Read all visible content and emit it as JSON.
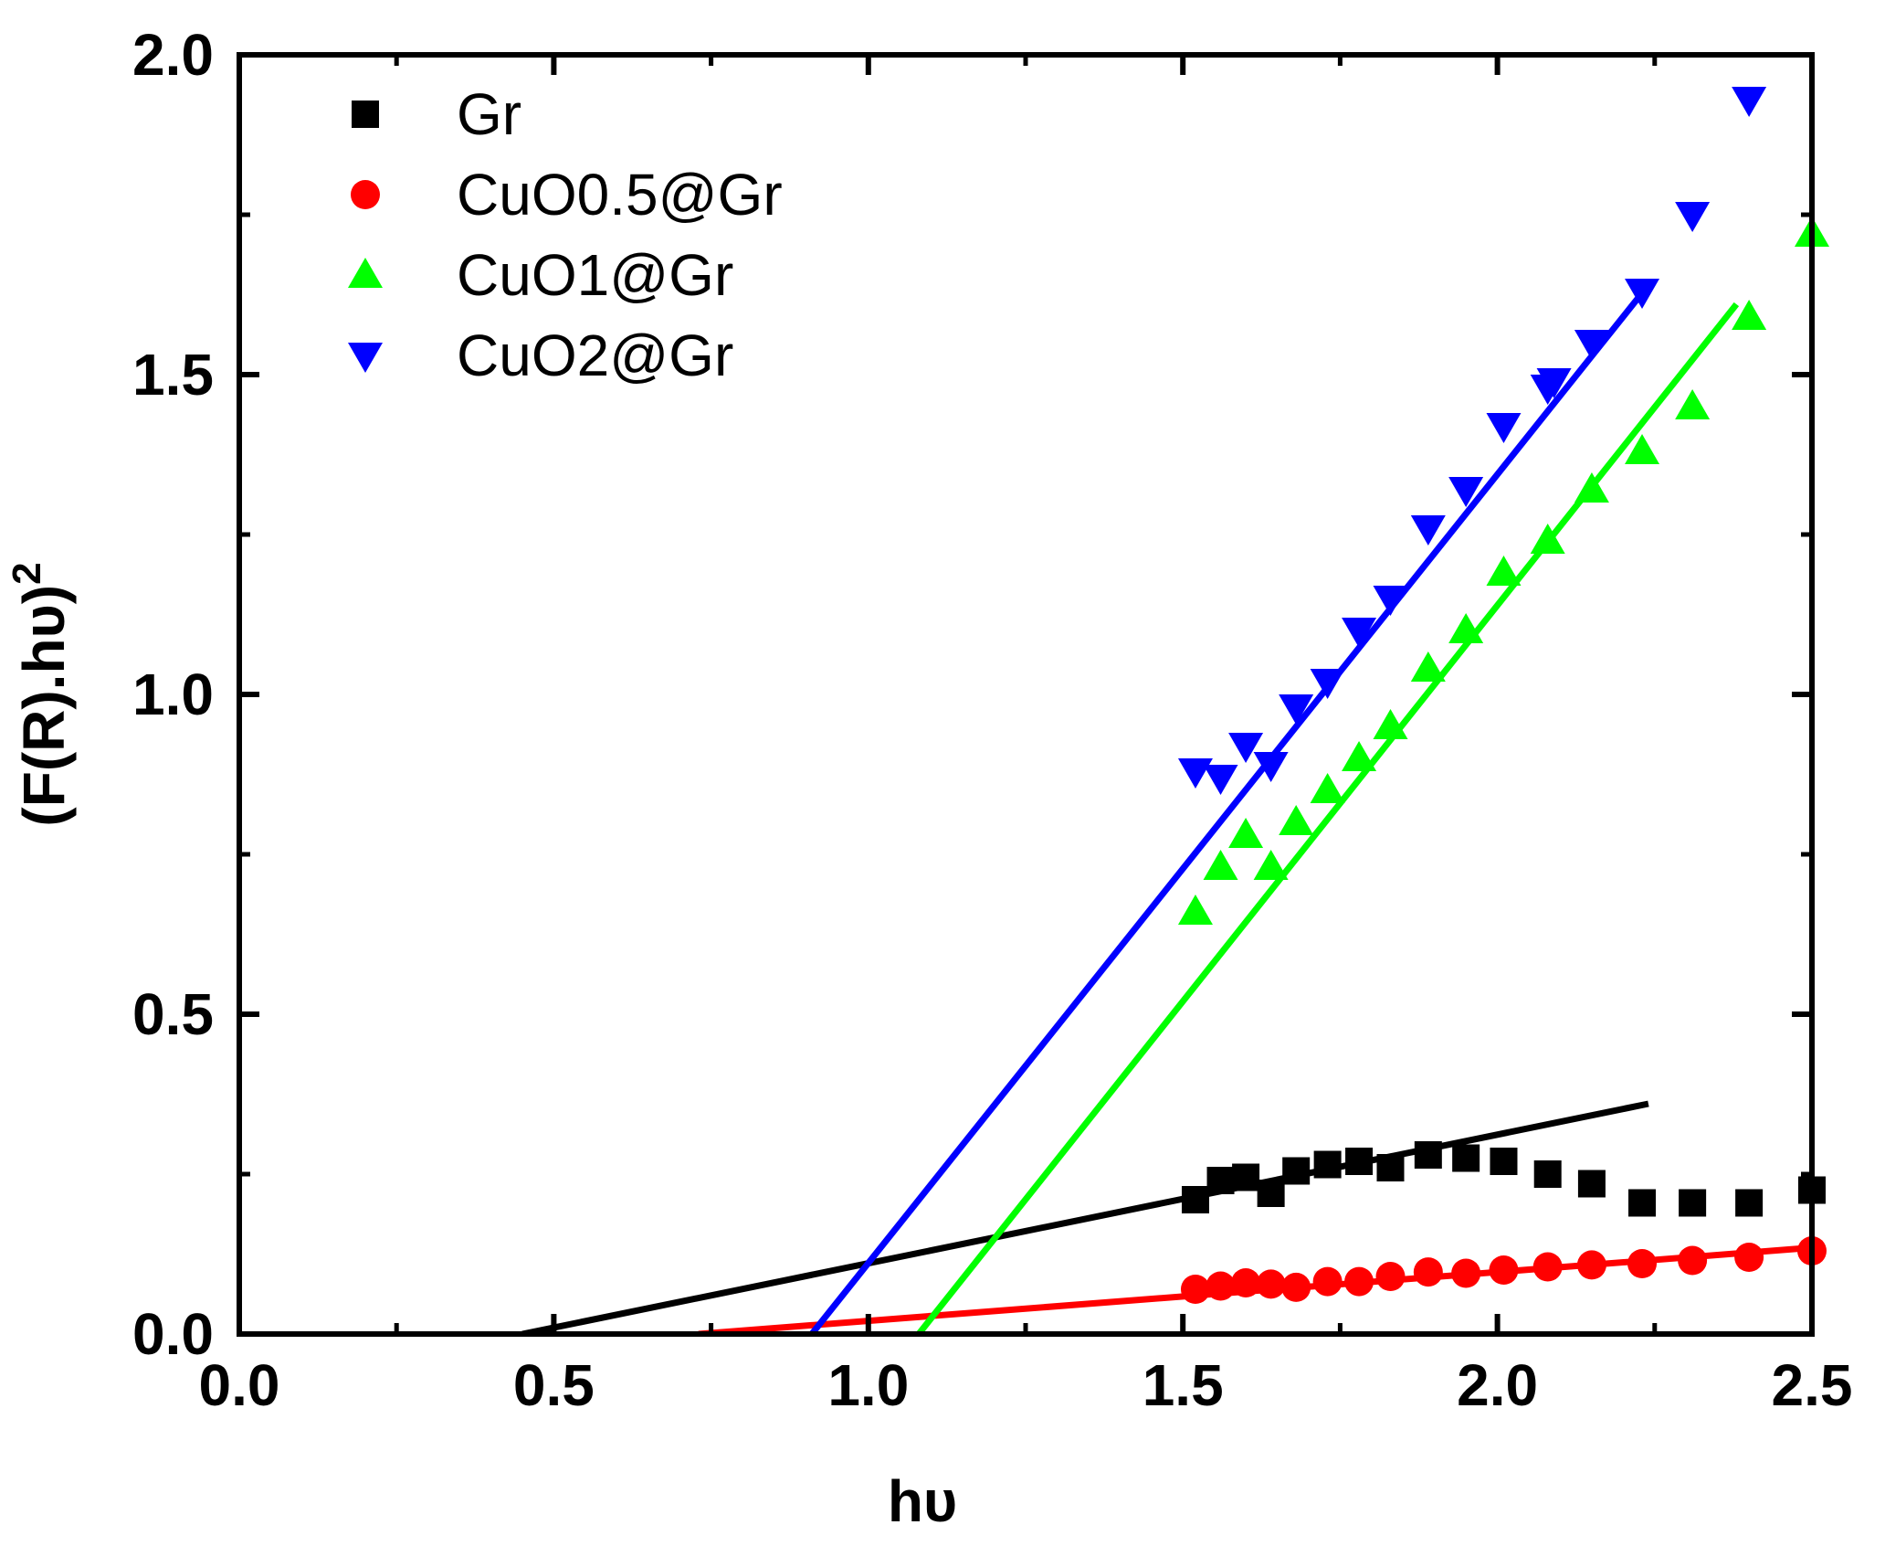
{
  "chart_data": {
    "type": "scatter",
    "title": "",
    "xlabel": "hυ",
    "ylabel": "(F(R).hυ)",
    "ylabel_superscript": "2",
    "xlim": [
      0.0,
      2.5
    ],
    "ylim": [
      0.0,
      2.0
    ],
    "x_ticks": [
      0.0,
      0.5,
      1.0,
      1.5,
      2.0,
      2.5
    ],
    "x_tick_labels": [
      "0.0",
      "0.5",
      "1.0",
      "1.5",
      "2.0",
      "2.5"
    ],
    "y_ticks": [
      0.0,
      0.5,
      1.0,
      1.5,
      2.0
    ],
    "y_tick_labels": [
      "0.0",
      "0.5",
      "1.0",
      "1.5",
      "2.0"
    ],
    "grid": false,
    "legend_position": "top-left",
    "series": [
      {
        "name": "Gr",
        "color": "#000000",
        "marker": "square",
        "x": [
          1.52,
          1.56,
          1.6,
          1.64,
          1.68,
          1.73,
          1.78,
          1.83,
          1.89,
          1.95,
          2.01,
          2.08,
          2.15,
          2.23,
          2.31,
          2.4,
          2.5
        ],
        "y": [
          0.21,
          0.24,
          0.245,
          0.22,
          0.255,
          0.265,
          0.27,
          0.26,
          0.28,
          0.275,
          0.27,
          0.25,
          0.235,
          0.205,
          0.205,
          0.205,
          0.225
        ],
        "fit": [
          [
            0.45,
            0.0
          ],
          [
            2.24,
            0.36
          ]
        ]
      },
      {
        "name": "CuO0.5@Gr",
        "color": "#ff0000",
        "marker": "circle",
        "x": [
          1.52,
          1.56,
          1.6,
          1.64,
          1.68,
          1.73,
          1.78,
          1.83,
          1.89,
          1.95,
          2.01,
          2.08,
          2.15,
          2.23,
          2.31,
          2.4,
          2.5
        ],
        "y": [
          0.07,
          0.075,
          0.08,
          0.078,
          0.073,
          0.082,
          0.082,
          0.09,
          0.097,
          0.095,
          0.1,
          0.105,
          0.108,
          0.11,
          0.115,
          0.12,
          0.13
        ],
        "fit": [
          [
            0.73,
            0.0
          ],
          [
            2.5,
            0.135
          ]
        ]
      },
      {
        "name": "CuO1@Gr",
        "color": "#00ff00",
        "marker": "triangle-up",
        "x": [
          1.52,
          1.56,
          1.6,
          1.64,
          1.68,
          1.73,
          1.78,
          1.83,
          1.89,
          1.95,
          2.01,
          2.08,
          2.15,
          2.23,
          2.31,
          2.4,
          2.5
        ],
        "y": [
          0.66,
          0.73,
          0.78,
          0.73,
          0.8,
          0.85,
          0.9,
          0.95,
          1.04,
          1.1,
          1.19,
          1.24,
          1.32,
          1.38,
          1.45,
          1.59,
          1.72
        ],
        "fit": [
          [
            1.08,
            0.0
          ],
          [
            2.38,
            1.61
          ]
        ]
      },
      {
        "name": "CuO2@Gr",
        "color": "#0000ff",
        "marker": "triangle-down",
        "x": [
          1.52,
          1.56,
          1.6,
          1.64,
          1.68,
          1.73,
          1.78,
          1.83,
          1.89,
          1.95,
          2.01,
          2.08,
          2.09,
          2.15,
          2.23,
          2.31,
          2.4
        ],
        "y": [
          0.88,
          0.87,
          0.92,
          0.89,
          0.98,
          1.02,
          1.1,
          1.15,
          1.26,
          1.32,
          1.42,
          1.48,
          1.49,
          1.55,
          1.63,
          1.75,
          1.93
        ],
        "fit": [
          [
            0.91,
            0.0
          ],
          [
            2.24,
            1.64
          ]
        ]
      }
    ]
  }
}
